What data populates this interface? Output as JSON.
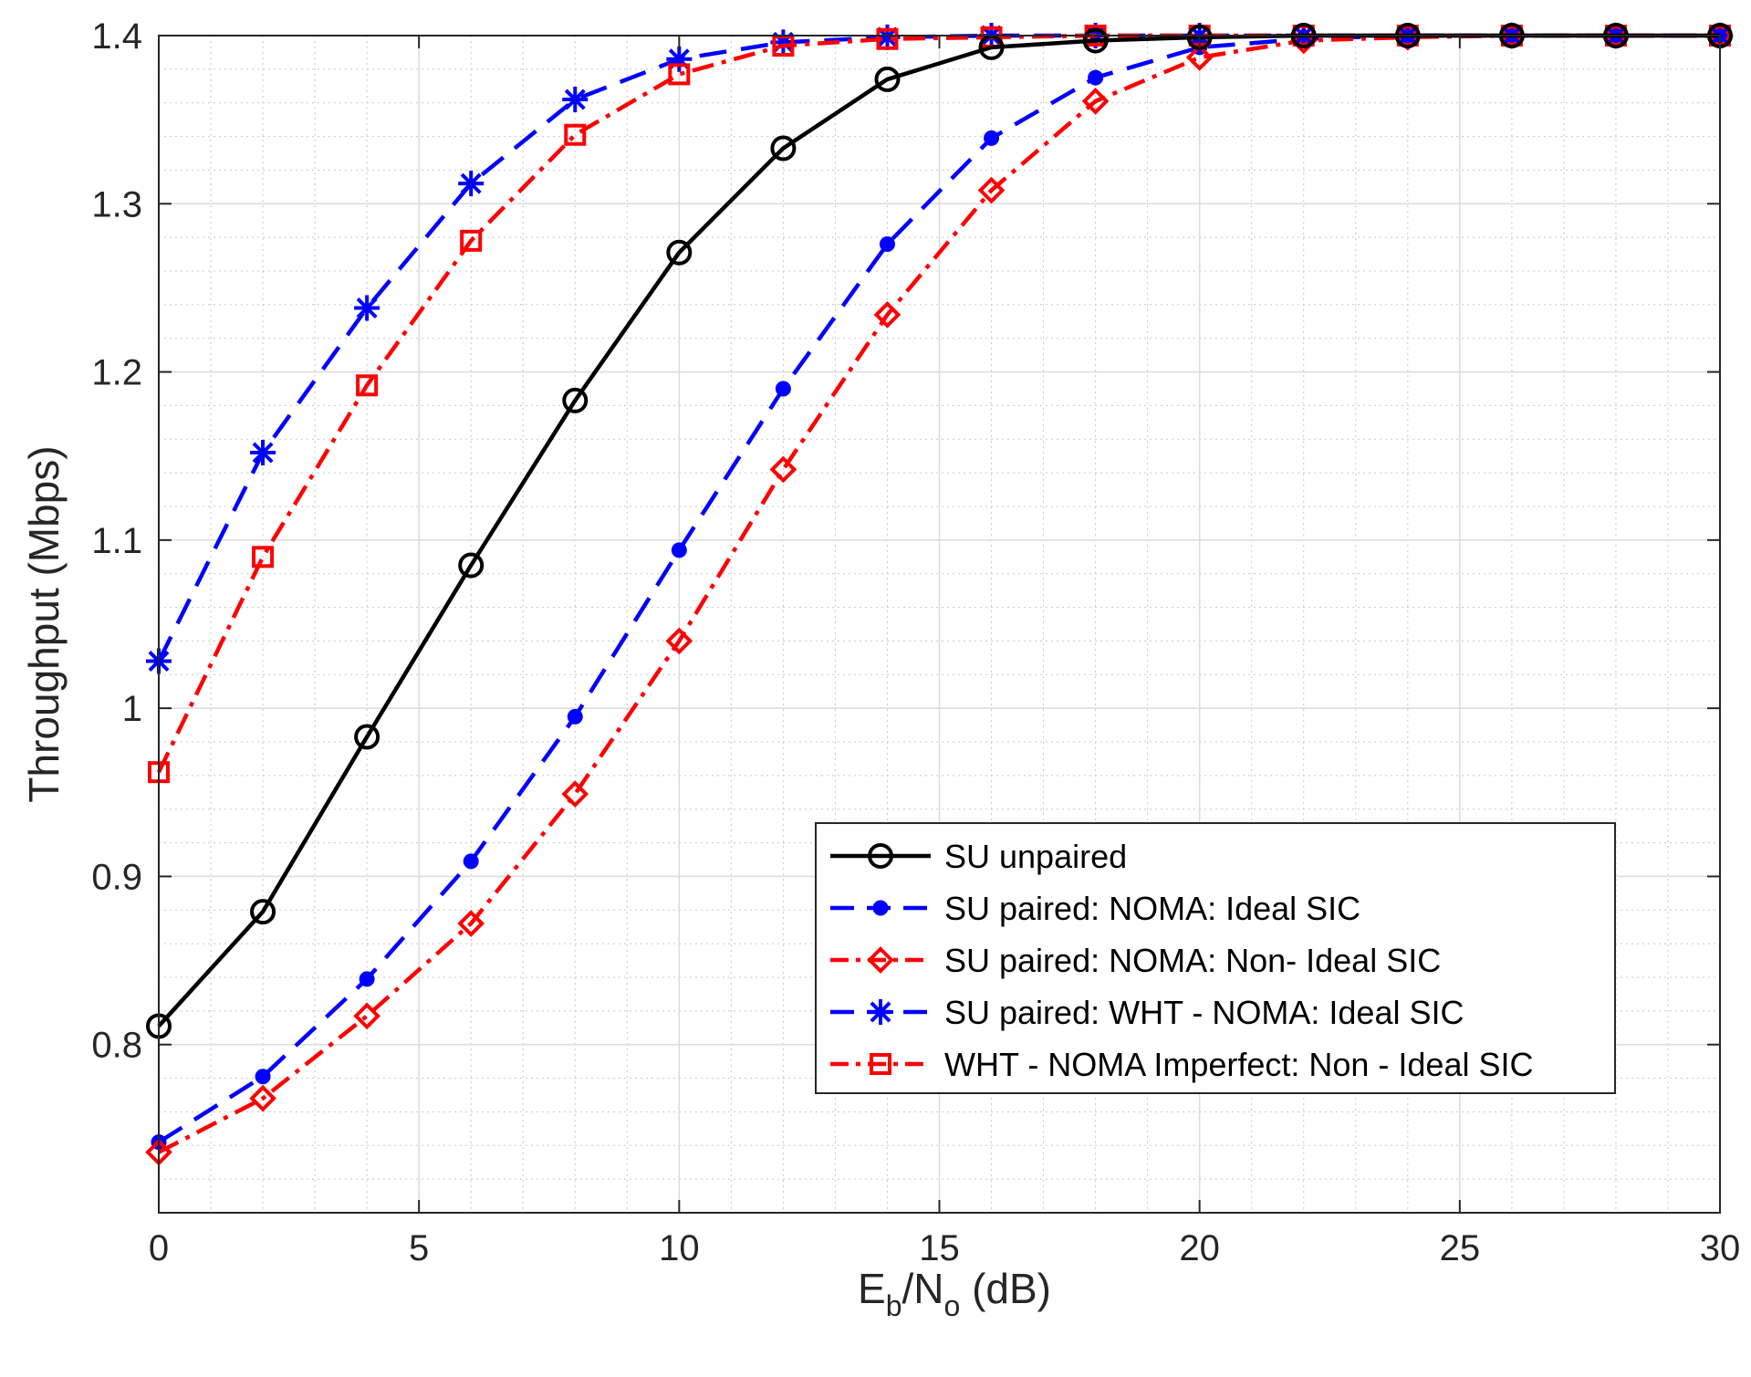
{
  "chart_data": {
    "type": "line",
    "title": "",
    "xlabel": {
      "main": "E",
      "sub1": "b",
      "mid": "/N",
      "sub2": "o",
      "tail": " (dB)"
    },
    "ylabel": "Throughput (Mbps)",
    "xlim": [
      0,
      30
    ],
    "ylim": [
      0.7,
      1.4
    ],
    "xticks": [
      0,
      5,
      10,
      15,
      20,
      25,
      30
    ],
    "xtick_labels": [
      "0",
      "5",
      "10",
      "15",
      "20",
      "25",
      "30"
    ],
    "yticks": [
      0.8,
      0.9,
      1.0,
      1.1,
      1.2,
      1.3,
      1.4
    ],
    "ytick_labels": [
      "0.8",
      "0.9",
      "1",
      "1.1",
      "1.2",
      "1.3",
      "1.4"
    ],
    "grid": true,
    "minor_grid": true,
    "legend_position": "bottom-right",
    "x": [
      0,
      2,
      4,
      6,
      8,
      10,
      12,
      14,
      16,
      18,
      20,
      22,
      24,
      26,
      28,
      30
    ],
    "series": [
      {
        "name": "SU unpaired",
        "color": "#000000",
        "dash": "solid",
        "marker": "circle",
        "values": [
          0.811,
          0.879,
          0.983,
          1.085,
          1.183,
          1.271,
          1.333,
          1.374,
          1.393,
          1.397,
          1.399,
          1.4,
          1.4,
          1.4,
          1.4,
          1.4
        ]
      },
      {
        "name": "SU paired: NOMA: Ideal SIC",
        "color": "#0000ff",
        "dash": "dash",
        "marker": "dot",
        "values": [
          0.742,
          0.781,
          0.839,
          0.909,
          0.995,
          1.094,
          1.19,
          1.276,
          1.339,
          1.375,
          1.393,
          1.398,
          1.4,
          1.4,
          1.4,
          1.4
        ]
      },
      {
        "name": "SU paired: NOMA: Non- Ideal SIC",
        "color": "#ff0000",
        "dash": "dashdot",
        "marker": "diamond",
        "values": [
          0.736,
          0.768,
          0.817,
          0.872,
          0.949,
          1.04,
          1.142,
          1.234,
          1.308,
          1.361,
          1.387,
          1.397,
          1.399,
          1.4,
          1.4,
          1.4
        ]
      },
      {
        "name": "SU paired: WHT - NOMA: Ideal SIC",
        "color": "#0000ff",
        "dash": "dash",
        "marker": "asterisk",
        "values": [
          1.028,
          1.152,
          1.238,
          1.312,
          1.362,
          1.386,
          1.396,
          1.399,
          1.4,
          1.4,
          1.4,
          1.4,
          1.4,
          1.4,
          1.4,
          1.4
        ]
      },
      {
        "name": "WHT - NOMA Imperfect: Non - Ideal SIC",
        "color": "#ff0000",
        "dash": "dashdot",
        "marker": "square",
        "values": [
          0.962,
          1.09,
          1.192,
          1.278,
          1.341,
          1.377,
          1.394,
          1.398,
          1.399,
          1.4,
          1.4,
          1.4,
          1.4,
          1.4,
          1.4,
          1.4
        ]
      }
    ]
  }
}
